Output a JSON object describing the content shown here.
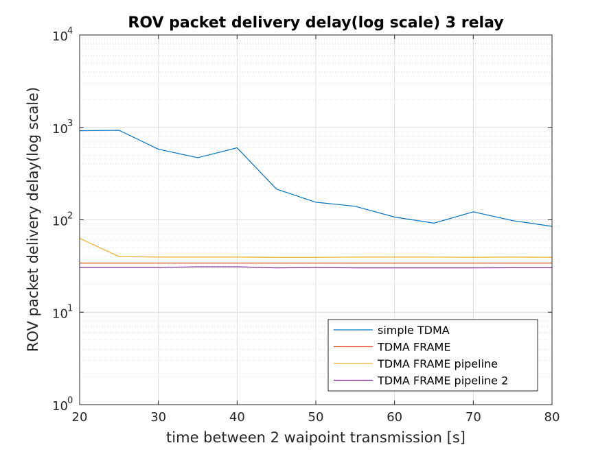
{
  "chart_data": {
    "type": "line",
    "title": "ROV packet delivery delay(log scale) 3 relay",
    "xlabel": "time between 2 waipoint transmission [s]",
    "ylabel": "ROV packet delivery delay(log scale)",
    "xlim": [
      20,
      80
    ],
    "ylim": [
      1,
      10000
    ],
    "yscale": "log",
    "grid": true,
    "x_ticks": [
      "20",
      "30",
      "40",
      "50",
      "60",
      "70",
      "80"
    ],
    "y_ticks": [
      {
        "base": "10",
        "exp": "0"
      },
      {
        "base": "10",
        "exp": "1"
      },
      {
        "base": "10",
        "exp": "2"
      },
      {
        "base": "10",
        "exp": "3"
      },
      {
        "base": "10",
        "exp": "4"
      }
    ],
    "legend_position": "bottom-right",
    "x": [
      20,
      25,
      30,
      35,
      40,
      45,
      50,
      55,
      60,
      65,
      70,
      75,
      80
    ],
    "series": [
      {
        "name": "simple TDMA",
        "color": "#0072BD",
        "values": [
          920,
          930,
          580,
          470,
          600,
          215,
          155,
          140,
          107,
          92,
          122,
          98,
          85
        ]
      },
      {
        "name": "TDMA FRAME",
        "color": "#D95319",
        "values": [
          34,
          34,
          34,
          34,
          34,
          34,
          34,
          34,
          34,
          34,
          34,
          34,
          34
        ]
      },
      {
        "name": "TDMA FRAME pipeline",
        "color": "#EDB120",
        "values": [
          63,
          40,
          39.5,
          39.5,
          39.5,
          39.2,
          39.2,
          39.5,
          39.5,
          39.5,
          39.3,
          39.5,
          39.3
        ]
      },
      {
        "name": "TDMA FRAME pipeline 2",
        "color": "#7E2F8E",
        "values": [
          30.5,
          30.5,
          30.5,
          31,
          31,
          30.2,
          30.5,
          30.2,
          30.2,
          30.2,
          30.2,
          30.3,
          30.3
        ]
      }
    ]
  }
}
